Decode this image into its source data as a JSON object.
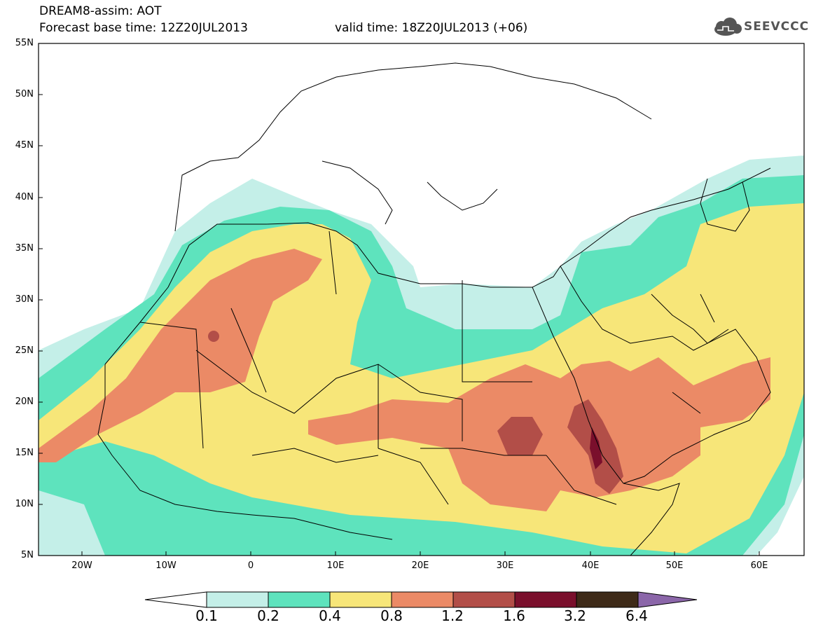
{
  "header": {
    "title": "DREAM8-assim: AOT",
    "base_time": "Forecast base time: 12Z20JUL2013",
    "valid_time": "valid time: 18Z20JUL2013 (+06)",
    "logo_text": "SEEVCCC",
    "logo_icon": "cloud-icon"
  },
  "map": {
    "lat_labels": [
      "55N",
      "50N",
      "45N",
      "40N",
      "35N",
      "30N",
      "25N",
      "20N",
      "15N",
      "10N",
      "5N"
    ],
    "lon_labels": [
      "20W",
      "10W",
      "0",
      "10E",
      "20E",
      "30E",
      "40E",
      "50E",
      "60E"
    ],
    "colors": {
      "land_outline": "#000000",
      "background": "#ffffff"
    }
  },
  "colorbar": {
    "labels": [
      "0.1",
      "0.2",
      "0.4",
      "0.8",
      "1.2",
      "1.6",
      "3.2",
      "6.4"
    ],
    "colors": [
      "#ffffff",
      "#c4efe8",
      "#5ee3bd",
      "#f7e679",
      "#eb8a66",
      "#b24e48",
      "#7a0f2c",
      "#3e2a18",
      "#8b66a9"
    ]
  }
}
